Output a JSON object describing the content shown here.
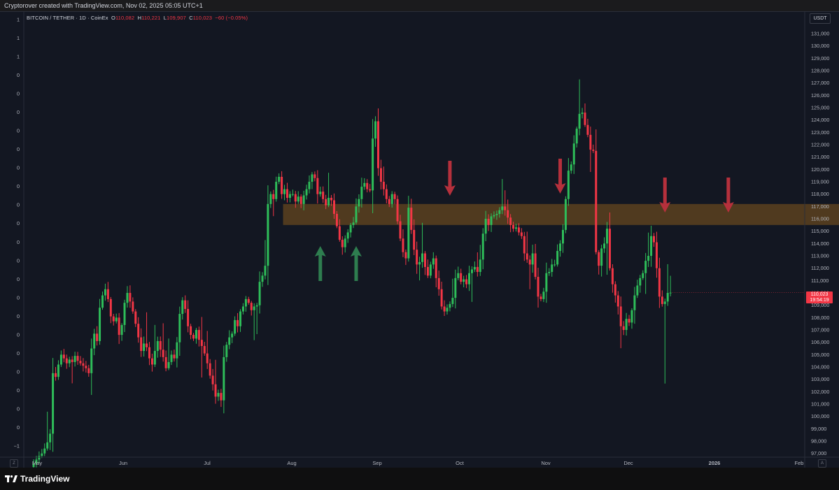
{
  "header": {
    "caption": "Cryptorover created with TradingView.com, Nov 02, 2025 05:05 UTC+1"
  },
  "legend": {
    "symbol": "BITCOIN / TETHER · 1D · CoinEx",
    "o_label": "O",
    "o_value": "110,082",
    "h_label": "H",
    "h_value": "110,221",
    "l_label": "L",
    "l_value": "109,907",
    "c_label": "C",
    "c_value": "110,023",
    "change": "−60 (−0.05%)"
  },
  "price_axis": {
    "unit": "USDT",
    "last_price": "110,023",
    "countdown": "19:54:19"
  },
  "buttons": {
    "z_label": "Z",
    "a_label": "A"
  },
  "footer": {
    "brand": "TradingView"
  },
  "colors": {
    "up": "#26a69a",
    "up_bright": "#3fb950",
    "down": "#f23645",
    "zone": "#6b4a1e",
    "arrow_up": "#2e7d4f",
    "arrow_down": "#b5303c",
    "background": "#131722"
  },
  "chart_data": {
    "type": "candlestick",
    "title": "BITCOIN / TETHER · 1D · CoinEx",
    "x_ticks": [
      "May",
      "Jun",
      "Jul",
      "Aug",
      "Sep",
      "Oct",
      "Nov",
      "Dec",
      "2026",
      "Feb"
    ],
    "y_ticks": [
      "132,000",
      "131,000",
      "130,000",
      "129,000",
      "128,000",
      "127,000",
      "126,000",
      "125,000",
      "124,000",
      "123,000",
      "122,000",
      "121,000",
      "120,000",
      "119,000",
      "118,000",
      "117,000",
      "116,000",
      "115,000",
      "114,000",
      "113,000",
      "112,000",
      "111,000",
      "110,000",
      "109,000",
      "108,000",
      "107,000",
      "106,000",
      "105,000",
      "104,000",
      "103,000",
      "102,000",
      "101,000",
      "100,000",
      "99,000",
      "98,000",
      "97,000"
    ],
    "left_axis_labels": [
      "1",
      "1",
      "1",
      "0",
      "0",
      "0",
      "0",
      "0",
      "0",
      "0",
      "0",
      "0",
      "0",
      "0",
      "0",
      "0",
      "0",
      "0",
      "0",
      "0",
      "0",
      "0",
      "0",
      "−1"
    ],
    "ylim": [
      96700,
      132700
    ],
    "closes": [
      96200,
      96500,
      96800,
      97000,
      97400,
      97900,
      98600,
      103500,
      103200,
      104200,
      105000,
      104700,
      104300,
      104600,
      104400,
      104900,
      104500,
      104300,
      104100,
      103900,
      103500,
      105500,
      106700,
      106100,
      108800,
      109800,
      110300,
      109500,
      108100,
      107700,
      108000,
      106600,
      107400,
      109200,
      110000,
      109300,
      108500,
      107500,
      106400,
      105300,
      105900,
      105600,
      104700,
      104200,
      105300,
      106100,
      105400,
      104800,
      103900,
      104400,
      105000,
      104700,
      106000,
      108300,
      109400,
      108700,
      107300,
      106600,
      106300,
      107000,
      106200,
      105700,
      105100,
      104300,
      103300,
      102600,
      101600,
      101900,
      101300,
      104800,
      105800,
      106400,
      106700,
      107800,
      107300,
      108500,
      108900,
      109500,
      109200,
      108600,
      108900,
      109000,
      110900,
      111400,
      112200,
      117200,
      118000,
      117600,
      119000,
      119400,
      118000,
      118400,
      117700,
      118000,
      118000,
      117400,
      117800,
      117200,
      117900,
      118400,
      119000,
      119600,
      119300,
      118000,
      118200,
      117600,
      117100,
      117700,
      117500,
      116400,
      115400,
      114300,
      113700,
      114400,
      114900,
      115500,
      115700,
      117000,
      117600,
      118600,
      118900,
      118400,
      118300,
      122500,
      123900,
      120100,
      119000,
      118400,
      117600,
      117200,
      118000,
      117600,
      115800,
      114400,
      113300,
      112800,
      116900,
      115100,
      113500,
      112300,
      112500,
      113200,
      112100,
      111400,
      112300,
      112800,
      111200,
      110300,
      108900,
      108500,
      108800,
      109100,
      109600,
      111200,
      111600,
      110900,
      111100,
      110700,
      111600,
      111900,
      112100,
      111700,
      112700,
      114800,
      116000,
      115500,
      116200,
      116300,
      116400,
      116700,
      117000,
      116700,
      116100,
      115500,
      115200,
      115300,
      114900,
      114600,
      113200,
      112700,
      112300,
      113200,
      111300,
      109700,
      109500,
      110100,
      111600,
      111700,
      112300,
      112300,
      113400,
      114000,
      115100,
      117600,
      119900,
      120400,
      122100,
      123300,
      124500,
      124600,
      123600,
      122800,
      121600,
      121500,
      113300,
      112200,
      113600,
      114000,
      115200,
      112000,
      110700,
      109800,
      108900,
      107300,
      107000,
      107900,
      107600,
      108600,
      109800,
      110600,
      111200,
      111600,
      112600,
      113000,
      114600,
      114100,
      112000,
      109700,
      109100,
      109300,
      110000,
      110023
    ],
    "zone": {
      "low": 115500,
      "high": 117200,
      "start": 91,
      "end": 322
    },
    "markers": [
      {
        "type": "arrow-up",
        "index": 104
      },
      {
        "type": "arrow-up",
        "index": 117
      },
      {
        "type": "arrow-down",
        "index": 151
      },
      {
        "type": "arrow-down",
        "index": 191
      },
      {
        "type": "arrow-down",
        "index": 229
      },
      {
        "type": "arrow-down",
        "index": 252
      }
    ],
    "grid": false
  }
}
